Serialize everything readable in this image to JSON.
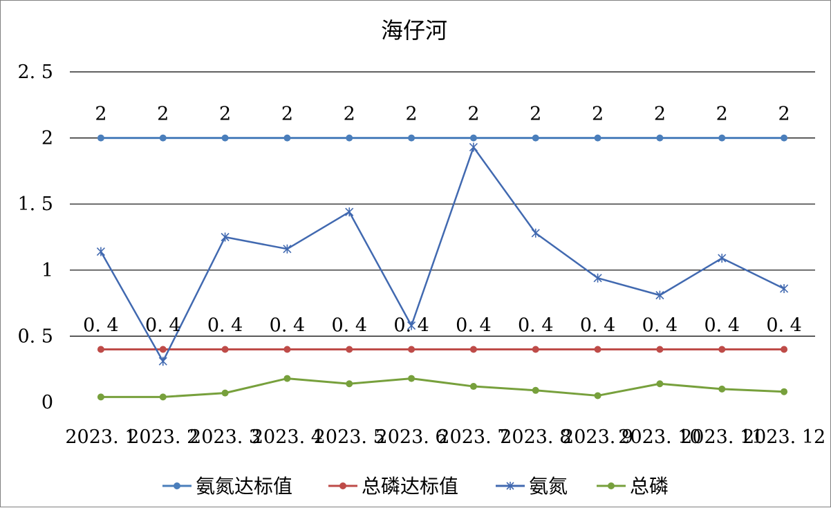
{
  "chart_data": {
    "type": "line",
    "title": "海仔河",
    "categories": [
      "2023.1",
      "2023.2",
      "2023.3",
      "2023.4",
      "2023.5",
      "2023.6",
      "2023.7",
      "2023.8",
      "2023.9",
      "2023.10",
      "2023.11",
      "2023.12"
    ],
    "category_labels": [
      "2023. 1",
      "2023. 2",
      "2023. 3",
      "2023. 4",
      "2023. 5",
      "2023. 6",
      "2023. 7",
      "2023. 8",
      "2023. 9",
      "2023. 10",
      "2023. 11",
      "2023. 12"
    ],
    "y_ticks": [
      "0",
      "0. 5",
      "1",
      "1. 5",
      "2",
      "2. 5"
    ],
    "ylim": [
      0,
      2.5
    ],
    "grid": true,
    "legend_position": "bottom",
    "series": [
      {
        "name": "氨氮达标值",
        "color": "#4A7EBB",
        "marker": "circle",
        "values": [
          2,
          2,
          2,
          2,
          2,
          2,
          2,
          2,
          2,
          2,
          2,
          2
        ],
        "labels": [
          "2",
          "2",
          "2",
          "2",
          "2",
          "2",
          "2",
          "2",
          "2",
          "2",
          "2",
          "2"
        ]
      },
      {
        "name": "总磷达标值",
        "color": "#BE4B48",
        "marker": "circle",
        "values": [
          0.4,
          0.4,
          0.4,
          0.4,
          0.4,
          0.4,
          0.4,
          0.4,
          0.4,
          0.4,
          0.4,
          0.4
        ],
        "labels": [
          "0. 4",
          "0. 4",
          "0. 4",
          "0. 4",
          "0. 4",
          "0. 4",
          "0. 4",
          "0. 4",
          "0. 4",
          "0. 4",
          "0. 4",
          "0. 4"
        ]
      },
      {
        "name": "氨氮",
        "color": "#4169B0",
        "marker": "star",
        "values": [
          1.14,
          0.31,
          1.25,
          1.16,
          1.44,
          0.58,
          1.93,
          1.28,
          0.94,
          0.81,
          1.09,
          0.86
        ]
      },
      {
        "name": "总磷",
        "color": "#77A03C",
        "marker": "circle",
        "values": [
          0.04,
          0.04,
          0.07,
          0.18,
          0.14,
          0.18,
          0.12,
          0.09,
          0.05,
          0.14,
          0.1,
          0.08
        ]
      }
    ]
  }
}
